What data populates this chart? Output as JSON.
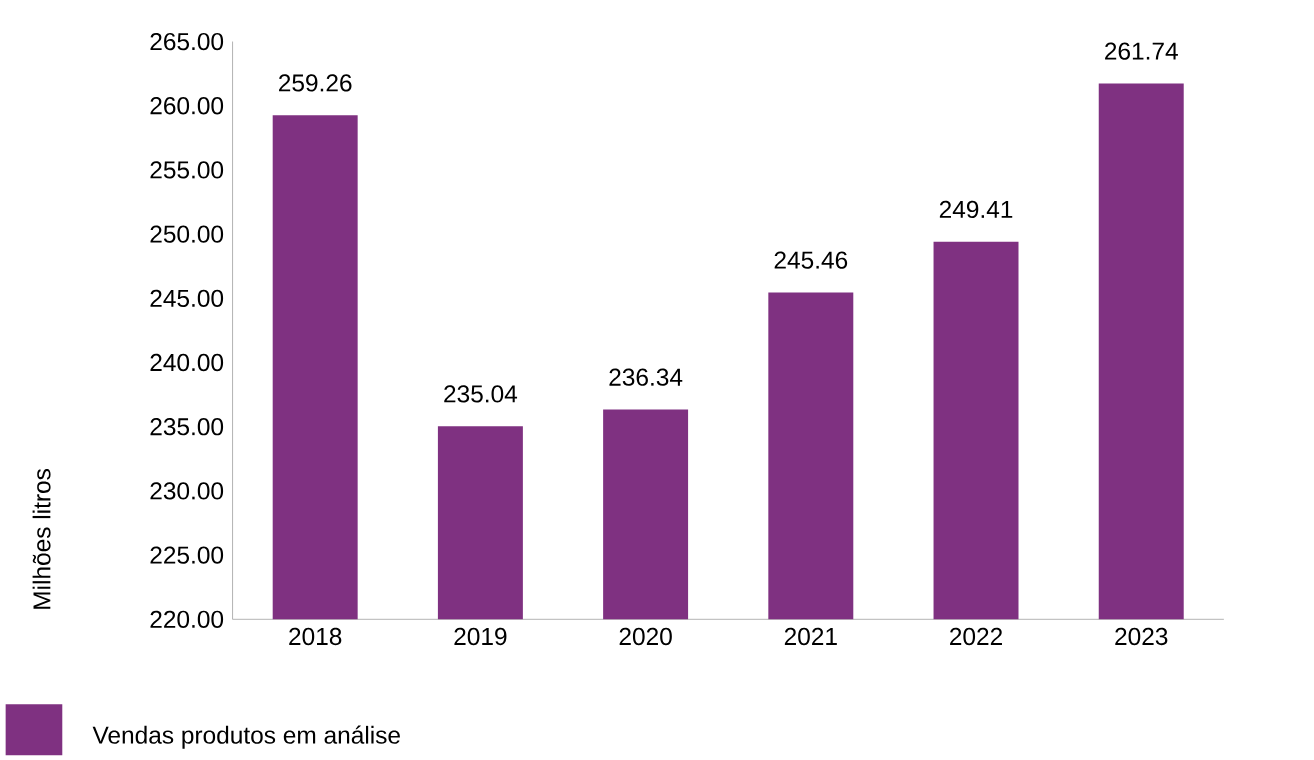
{
  "chart_data": {
    "type": "bar",
    "ylabel": "Milhões litros",
    "categories": [
      "2018",
      "2019",
      "2020",
      "2021",
      "2022",
      "2023"
    ],
    "series": [
      {
        "name": "Vendas produtos em análise",
        "color": "#7f3181",
        "values": [
          259.26,
          235.04,
          236.34,
          245.46,
          249.41,
          261.74
        ]
      }
    ],
    "ylim": [
      220,
      265
    ],
    "yticks": [
      {
        "value": 220,
        "label": "220.00"
      },
      {
        "value": 225,
        "label": "225.00"
      },
      {
        "value": 230,
        "label": "230.00"
      },
      {
        "value": 235,
        "label": "235.00"
      },
      {
        "value": 240,
        "label": "240.00"
      },
      {
        "value": 245,
        "label": "245.00"
      },
      {
        "value": 250,
        "label": "250.00"
      },
      {
        "value": 255,
        "label": "255.00"
      },
      {
        "value": 260,
        "label": "260.00"
      },
      {
        "value": 265,
        "label": "265.00"
      }
    ],
    "data_labels": true,
    "grid": false,
    "legend": "bottom left"
  }
}
